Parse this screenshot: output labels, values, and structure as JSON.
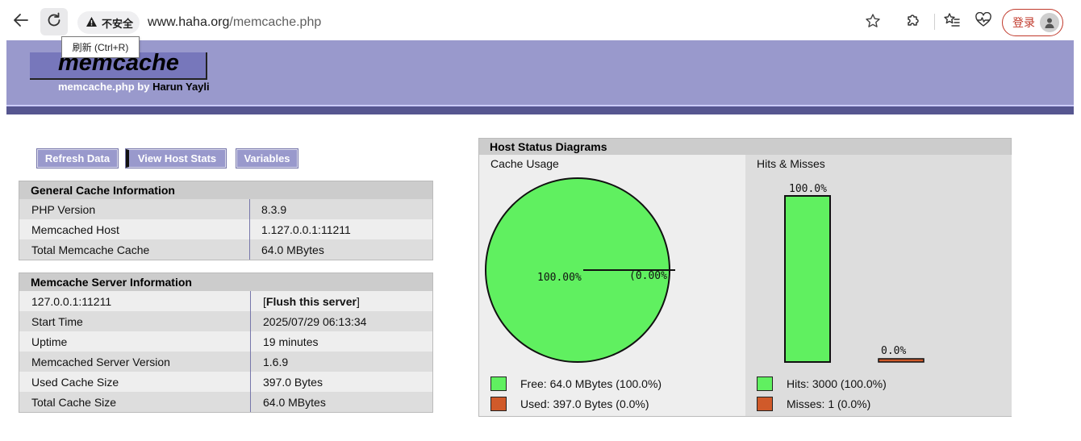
{
  "browser": {
    "security_label": "不安全",
    "url_host": "www.haha.org",
    "url_path": "/memcache.php",
    "reload_tooltip": "刷新 (Ctrl+R)",
    "login_label": "登录"
  },
  "header": {
    "logo": "memcache",
    "subtitle_prefix": "memcache.php by",
    "author": "Harun Yayli"
  },
  "menu": {
    "refresh": "Refresh Data",
    "host_stats": "View Host Stats",
    "variables": "Variables"
  },
  "general": {
    "title": "General Cache Information",
    "rows": [
      {
        "label": "PHP Version",
        "value": "8.3.9"
      },
      {
        "label": "Memcached Host",
        "value": "1.127.0.0.1:11211"
      },
      {
        "label": "Total Memcache Cache",
        "value": "64.0 MBytes"
      }
    ]
  },
  "server": {
    "title": "Memcache Server Information",
    "host": "127.0.0.1:11211",
    "flush_open": "[",
    "flush_label": "Flush this server",
    "flush_close": "]",
    "rows": [
      {
        "label": "Start Time",
        "value": "2025/07/29 06:13:34"
      },
      {
        "label": "Uptime",
        "value": "19 minutes"
      },
      {
        "label": "Memcached Server Version",
        "value": "1.6.9"
      },
      {
        "label": "Used Cache Size",
        "value": "397.0 Bytes"
      },
      {
        "label": "Total Cache Size",
        "value": "64.0 MBytes"
      }
    ]
  },
  "diagrams": {
    "title": "Host Status Diagrams",
    "cache_usage": {
      "title": "Cache Usage",
      "free_pct_label": "100.00%",
      "used_pct_label": "(0.00%",
      "free_legend": "Free: 64.0 MBytes (100.0%)",
      "used_legend": "Used: 397.0 Bytes (0.0%)"
    },
    "hits_misses": {
      "title": "Hits & Misses",
      "hits_pct_label": "100.0%",
      "misses_pct_label": "0.0%",
      "hits_legend": "Hits: 3000 (100.0%)",
      "misses_legend": "Misses: 1 (0.0%)"
    },
    "colors": {
      "free": "#60f060",
      "used": "#d05a2a"
    }
  },
  "chart_data": [
    {
      "type": "pie",
      "title": "Cache Usage",
      "categories": [
        "Free",
        "Used"
      ],
      "values": [
        100.0,
        0.0
      ]
    },
    {
      "type": "bar",
      "title": "Hits & Misses",
      "categories": [
        "Hits",
        "Misses"
      ],
      "values": [
        100.0,
        0.0
      ]
    }
  ]
}
